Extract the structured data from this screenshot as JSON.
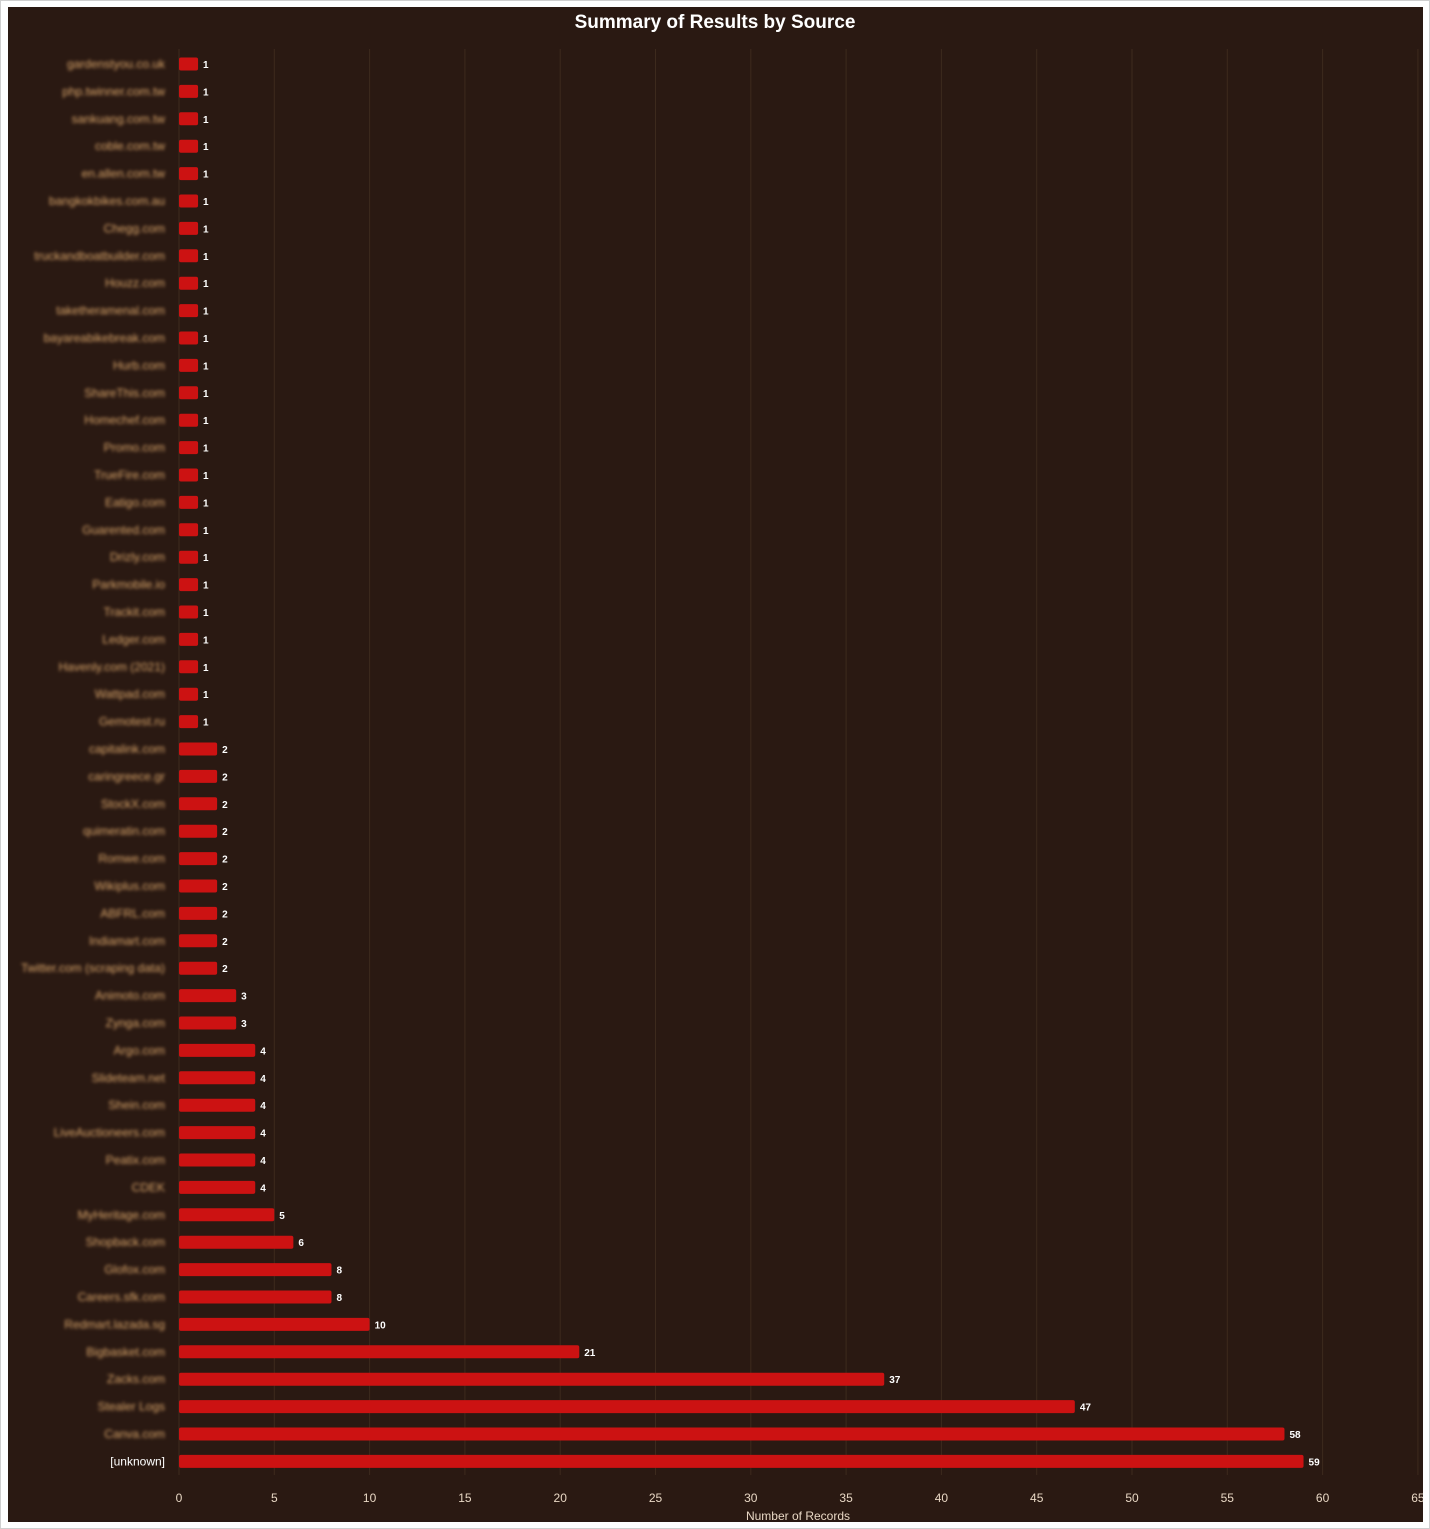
{
  "chart_data": {
    "type": "bar",
    "orientation": "horizontal",
    "title": "Summary of Results by Source",
    "xlabel": "Number of Records",
    "ylabel": "",
    "xlim": [
      0,
      65
    ],
    "xticks": [
      0,
      5,
      10,
      15,
      20,
      25,
      30,
      35,
      40,
      45,
      50,
      55,
      60,
      65
    ],
    "grid": true,
    "legend": "none",
    "bar_color": "#cc1212",
    "background_color": "#2a1912",
    "categories": [
      "gardenstyou.co.uk",
      "php.twinner.com.tw",
      "sankuang.com.tw",
      "coble.com.tw",
      "en.allen.com.tw",
      "bangkokbikes.com.au",
      "Chegg.com",
      "truckandboatbuilder.com",
      "Houzz.com",
      "taketheramenal.com",
      "bayareabikebreak.com",
      "Hurb.com",
      "ShareThis.com",
      "Homechef.com",
      "Promo.com",
      "TrueFire.com",
      "Eatigo.com",
      "Guarented.com",
      "Drizly.com",
      "Parkmobile.io",
      "Trackit.com",
      "Ledger.com",
      "Havenly.com (2021)",
      "Wattpad.com",
      "Gemotest.ru",
      "capitalink.com",
      "caringreece.gr",
      "StockX.com",
      "quimeratin.com",
      "Romwe.com",
      "Wikiplus.com",
      "ABFRL.com",
      "Indiamart.com",
      "Twitter.com (scraping data)",
      "Animoto.com",
      "Zynga.com",
      "Argo.com",
      "Slideteam.net",
      "Shein.com",
      "LiveAuctioneers.com",
      "Peatix.com",
      "CDEK",
      "MyHeritage.com",
      "Shopback.com",
      "Glofox.com",
      "Careers.sfk.com",
      "Redmart.lazada.sg",
      "Bigbasket.com",
      "Zacks.com",
      "Stealer Logs",
      "Canva.com",
      "[unknown]"
    ],
    "values": [
      1,
      1,
      1,
      1,
      1,
      1,
      1,
      1,
      1,
      1,
      1,
      1,
      1,
      1,
      1,
      1,
      1,
      1,
      1,
      1,
      1,
      1,
      1,
      1,
      1,
      2,
      2,
      2,
      2,
      2,
      2,
      2,
      2,
      2,
      3,
      3,
      4,
      4,
      4,
      4,
      4,
      4,
      5,
      6,
      8,
      8,
      10,
      21,
      37,
      47,
      58,
      59
    ]
  }
}
